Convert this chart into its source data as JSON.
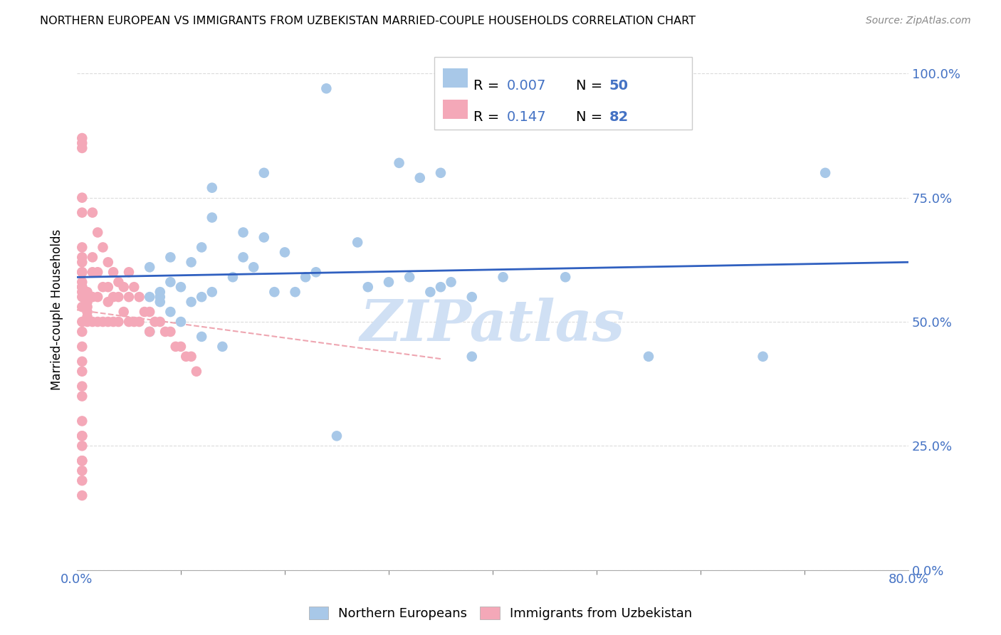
{
  "title": "NORTHERN EUROPEAN VS IMMIGRANTS FROM UZBEKISTAN MARRIED-COUPLE HOUSEHOLDS CORRELATION CHART",
  "source": "Source: ZipAtlas.com",
  "xlim": [
    0.0,
    0.8
  ],
  "ylim": [
    0.0,
    1.05
  ],
  "color_blue": "#a8c8e8",
  "color_pink": "#f4a8b8",
  "color_blue_text": "#4472c4",
  "trendline_blue": "#3060c0",
  "trendline_pink": "#e88090",
  "watermark_color": "#d0e0f4",
  "blue_scatter_x": [
    0.24,
    0.13,
    0.07,
    0.09,
    0.11,
    0.09,
    0.13,
    0.16,
    0.18,
    0.12,
    0.2,
    0.21,
    0.23,
    0.27,
    0.34,
    0.36,
    0.35,
    0.33,
    0.35,
    0.31,
    0.08,
    0.09,
    0.1,
    0.1,
    0.11,
    0.12,
    0.12,
    0.13,
    0.14,
    0.15,
    0.16,
    0.17,
    0.19,
    0.22,
    0.25,
    0.28,
    0.3,
    0.32,
    0.38,
    0.47,
    0.55,
    0.38,
    0.41,
    0.07,
    0.08,
    0.66,
    0.72,
    0.18,
    0.07,
    0.08
  ],
  "blue_scatter_y": [
    0.97,
    0.77,
    0.55,
    0.63,
    0.62,
    0.58,
    0.71,
    0.68,
    0.67,
    0.65,
    0.64,
    0.56,
    0.6,
    0.66,
    0.56,
    0.58,
    0.57,
    0.79,
    0.8,
    0.82,
    0.56,
    0.52,
    0.57,
    0.5,
    0.54,
    0.47,
    0.55,
    0.56,
    0.45,
    0.59,
    0.63,
    0.61,
    0.56,
    0.59,
    0.27,
    0.57,
    0.58,
    0.59,
    0.43,
    0.59,
    0.43,
    0.55,
    0.59,
    0.48,
    0.54,
    0.43,
    0.8,
    0.8,
    0.61,
    0.55
  ],
  "pink_scatter_x": [
    0.005,
    0.005,
    0.005,
    0.005,
    0.005,
    0.005,
    0.005,
    0.005,
    0.005,
    0.005,
    0.01,
    0.01,
    0.01,
    0.01,
    0.01,
    0.01,
    0.01,
    0.015,
    0.015,
    0.015,
    0.015,
    0.015,
    0.02,
    0.02,
    0.02,
    0.02,
    0.025,
    0.025,
    0.025,
    0.03,
    0.03,
    0.03,
    0.03,
    0.035,
    0.035,
    0.035,
    0.04,
    0.04,
    0.04,
    0.045,
    0.045,
    0.05,
    0.05,
    0.05,
    0.055,
    0.055,
    0.06,
    0.06,
    0.065,
    0.07,
    0.07,
    0.075,
    0.08,
    0.085,
    0.09,
    0.095,
    0.1,
    0.105,
    0.11,
    0.115,
    0.005,
    0.005,
    0.005,
    0.005,
    0.005,
    0.005,
    0.005,
    0.005,
    0.005,
    0.005,
    0.005,
    0.005,
    0.005,
    0.005,
    0.005,
    0.005,
    0.005,
    0.005,
    0.005,
    0.005,
    0.005,
    0.005
  ],
  "pink_scatter_y": [
    0.87,
    0.86,
    0.85,
    0.75,
    0.72,
    0.65,
    0.63,
    0.62,
    0.6,
    0.57,
    0.56,
    0.55,
    0.54,
    0.53,
    0.52,
    0.51,
    0.5,
    0.72,
    0.63,
    0.6,
    0.55,
    0.5,
    0.68,
    0.6,
    0.55,
    0.5,
    0.65,
    0.57,
    0.5,
    0.62,
    0.57,
    0.54,
    0.5,
    0.6,
    0.55,
    0.5,
    0.58,
    0.55,
    0.5,
    0.57,
    0.52,
    0.6,
    0.55,
    0.5,
    0.57,
    0.5,
    0.55,
    0.5,
    0.52,
    0.52,
    0.48,
    0.5,
    0.5,
    0.48,
    0.48,
    0.45,
    0.45,
    0.43,
    0.43,
    0.4,
    0.6,
    0.57,
    0.55,
    0.53,
    0.5,
    0.48,
    0.45,
    0.42,
    0.4,
    0.37,
    0.35,
    0.3,
    0.27,
    0.25,
    0.22,
    0.2,
    0.18,
    0.15,
    0.27,
    0.22,
    0.56,
    0.58
  ]
}
